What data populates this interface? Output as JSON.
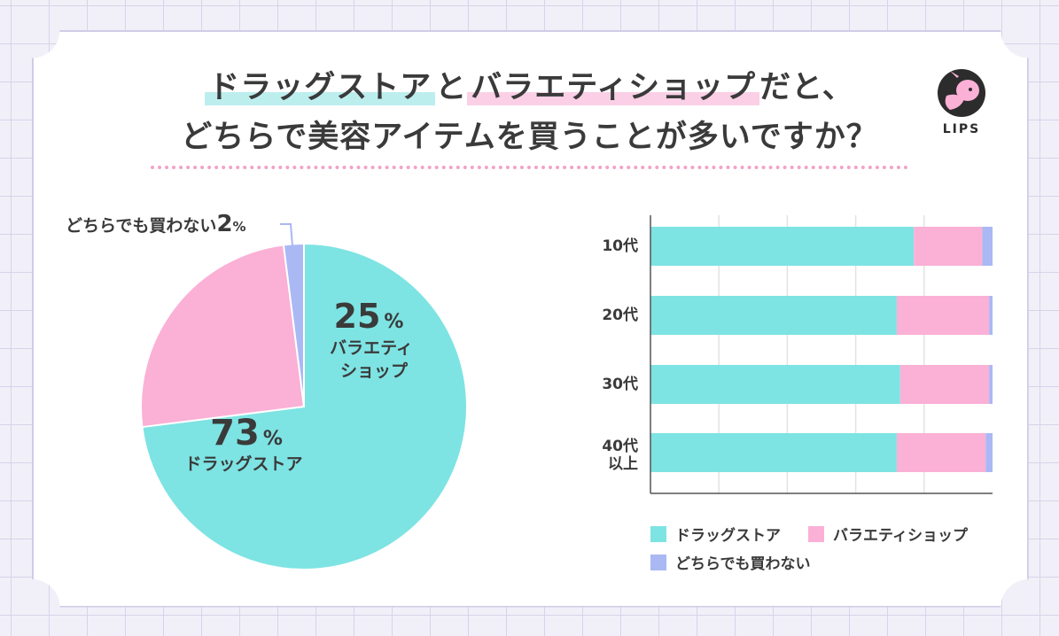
{
  "title": {
    "line1_part1": "ドラッグストア",
    "line1_conj": "と",
    "line1_part2": "バラエティショップ",
    "line1_end": "だと、",
    "line2": "どちらで美容アイテムを買うことが多いですか？"
  },
  "logo": {
    "text": "LIPS",
    "icon": "deer-icon"
  },
  "colors": {
    "drugstore": "#7ee3e3",
    "variety": "#fbb0d6",
    "neither": "#aab8f4"
  },
  "chart_data": [
    {
      "type": "pie",
      "slices": [
        {
          "name": "ドラッグストア",
          "value": 73,
          "pct_label": "73",
          "color": "#7ee3e3"
        },
        {
          "name": "バラエティショップ",
          "value": 25,
          "pct_label": "25",
          "color": "#fbb0d6"
        },
        {
          "name": "どちらでも買わない",
          "value": 2,
          "pct_label": "2",
          "color": "#aab8f4"
        }
      ],
      "labels": {
        "drugstore_name": "ドラッグストア",
        "variety_line1": "バラエティ",
        "variety_line2": "ショップ",
        "neither_name": "どちらでも買わない",
        "percent_sign": "%"
      }
    },
    {
      "type": "bar",
      "orientation": "horizontal",
      "stacked": true,
      "xlim": [
        0,
        100
      ],
      "grid": true,
      "categories": [
        "10代",
        "20代",
        "30代",
        "40代 以上"
      ],
      "category_lines": [
        [
          "10代"
        ],
        [
          "20代"
        ],
        [
          "30代"
        ],
        [
          "40代",
          "以上"
        ]
      ],
      "series": [
        {
          "name": "ドラッグストア",
          "color": "#7ee3e3",
          "values": [
            77,
            72,
            73,
            72
          ]
        },
        {
          "name": "バラエティショップ",
          "color": "#fbb0d6",
          "values": [
            20,
            27,
            26,
            26
          ]
        },
        {
          "name": "どちらでも買わない",
          "color": "#aab8f4",
          "values": [
            3,
            1,
            1,
            2
          ]
        }
      ],
      "legend": {
        "position": "bottom",
        "items": [
          "ドラッグストア",
          "バラエティショップ",
          "どちらでも買わない"
        ]
      }
    }
  ]
}
